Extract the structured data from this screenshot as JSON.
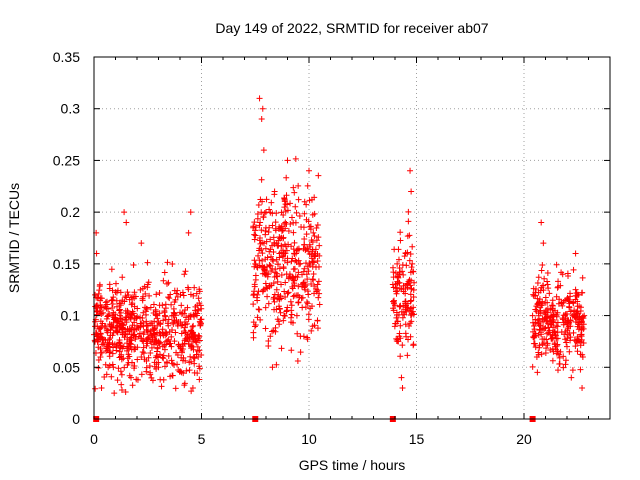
{
  "chart_data": {
    "type": "scatter",
    "title": "Day 149 of 2022, SRMTID for receiver ab07",
    "xlabel": "GPS time / hours",
    "ylabel": "SRMTID / TECUs",
    "xlim": [
      0,
      24
    ],
    "ylim": [
      0,
      0.35
    ],
    "xticks": [
      0,
      5,
      10,
      15,
      20
    ],
    "yticks": [
      0,
      0.05,
      0.1,
      0.15,
      0.2,
      0.25,
      0.3,
      0.35
    ],
    "grid": true,
    "marker": "plus",
    "color": "#ff0000",
    "clusters": [
      {
        "x_start": 0.0,
        "x_end": 5.0,
        "y_min": 0.025,
        "y_max": 0.205,
        "y_center": 0.085
      },
      {
        "x_start": 7.4,
        "x_end": 10.5,
        "y_min": 0.03,
        "y_max": 0.315,
        "y_center": 0.15
      },
      {
        "x_start": 13.9,
        "x_end": 14.9,
        "y_min": 0.025,
        "y_max": 0.24,
        "y_center": 0.12
      },
      {
        "x_start": 20.4,
        "x_end": 22.8,
        "y_min": 0.028,
        "y_max": 0.195,
        "y_center": 0.095
      }
    ],
    "zero_markers": [
      0.1,
      7.5,
      13.9,
      20.4
    ],
    "sample_points": [
      [
        0.05,
        0.12
      ],
      [
        0.1,
        0.18
      ],
      [
        0.12,
        0.16
      ],
      [
        0.2,
        0.08
      ],
      [
        0.3,
        0.06
      ],
      [
        0.35,
        0.03
      ],
      [
        0.5,
        0.09
      ],
      [
        0.7,
        0.07
      ],
      [
        0.9,
        0.05
      ],
      [
        1.2,
        0.1
      ],
      [
        1.4,
        0.2
      ],
      [
        1.5,
        0.19
      ],
      [
        1.7,
        0.07
      ],
      [
        2.0,
        0.09
      ],
      [
        2.2,
        0.06
      ],
      [
        2.2,
        0.17
      ],
      [
        2.5,
        0.13
      ],
      [
        2.8,
        0.08
      ],
      [
        3.0,
        0.05
      ],
      [
        3.3,
        0.1
      ],
      [
        3.6,
        0.07
      ],
      [
        3.9,
        0.09
      ],
      [
        4.2,
        0.14
      ],
      [
        4.4,
        0.18
      ],
      [
        4.5,
        0.2
      ],
      [
        4.6,
        0.03
      ],
      [
        4.8,
        0.11
      ],
      [
        4.9,
        0.08
      ],
      [
        7.5,
        0.15
      ],
      [
        7.6,
        0.12
      ],
      [
        7.7,
        0.31
      ],
      [
        7.8,
        0.29
      ],
      [
        7.85,
        0.3
      ],
      [
        7.9,
        0.26
      ],
      [
        8.0,
        0.2
      ],
      [
        8.1,
        0.14
      ],
      [
        8.2,
        0.08
      ],
      [
        8.3,
        0.05
      ],
      [
        8.4,
        0.22
      ],
      [
        8.5,
        0.17
      ],
      [
        8.7,
        0.13
      ],
      [
        8.9,
        0.19
      ],
      [
        9.0,
        0.25
      ],
      [
        9.2,
        0.11
      ],
      [
        9.4,
        0.16
      ],
      [
        9.6,
        0.08
      ],
      [
        9.8,
        0.21
      ],
      [
        9.9,
        0.14
      ],
      [
        10.0,
        0.24
      ],
      [
        10.2,
        0.18
      ],
      [
        10.4,
        0.13
      ],
      [
        13.9,
        0.13
      ],
      [
        14.0,
        0.11
      ],
      [
        14.1,
        0.15
      ],
      [
        14.2,
        0.08
      ],
      [
        14.3,
        0.04
      ],
      [
        14.35,
        0.03
      ],
      [
        14.5,
        0.16
      ],
      [
        14.7,
        0.24
      ],
      [
        14.75,
        0.22
      ],
      [
        14.8,
        0.15
      ],
      [
        20.4,
        0.1
      ],
      [
        20.5,
        0.08
      ],
      [
        20.6,
        0.06
      ],
      [
        20.8,
        0.19
      ],
      [
        20.9,
        0.17
      ],
      [
        21.1,
        0.13
      ],
      [
        21.3,
        0.11
      ],
      [
        21.5,
        0.09
      ],
      [
        21.8,
        0.14
      ],
      [
        22.0,
        0.07
      ],
      [
        22.2,
        0.04
      ],
      [
        22.4,
        0.16
      ],
      [
        22.5,
        0.12
      ],
      [
        22.7,
        0.03
      ],
      [
        22.8,
        0.1
      ]
    ]
  }
}
